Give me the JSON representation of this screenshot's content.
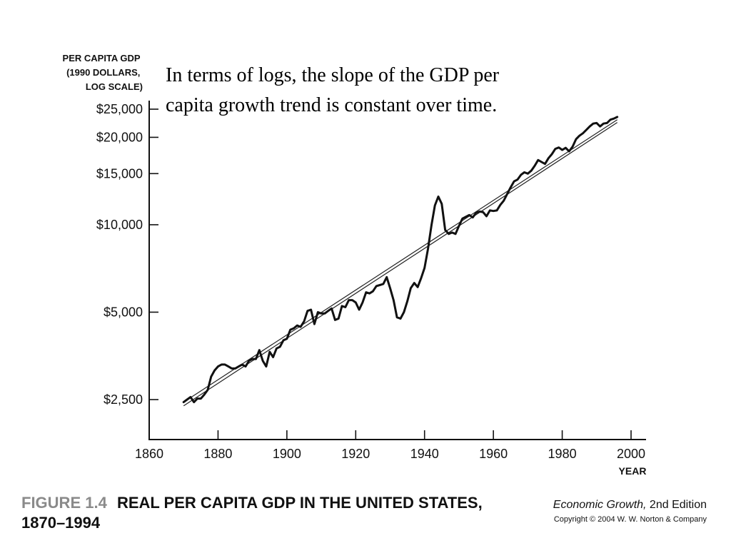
{
  "annotation": {
    "line1": "In terms of logs, the slope of the GDP per",
    "line2": "capita growth trend is constant over time."
  },
  "figure": {
    "number": "FIGURE 1.4",
    "title_line1": "REAL PER CAPITA GDP IN THE UNITED STATES,",
    "title_line2": "1870–1994",
    "book_title": "Economic Growth,",
    "book_edition": " 2nd Edition",
    "copyright": "Copyright © 2004 W. W. Norton & Company"
  },
  "colors": {
    "line": "#111111",
    "axis": "#111111",
    "trend": "#222222"
  },
  "chart_data": {
    "type": "line",
    "ylabel_lines": [
      "PER CAPITA GDP",
      "(1990 DOLLARS,",
      "LOG SCALE)"
    ],
    "xlabel": "YEAR",
    "yscale": "log",
    "xlim": [
      1860,
      2000
    ],
    "x_ticks": [
      1860,
      1880,
      1900,
      1920,
      1940,
      1960,
      1980,
      2000
    ],
    "x_tick_labels": [
      "1860",
      "1880",
      "1900",
      "1920",
      "1940",
      "1960",
      "1980",
      "2000"
    ],
    "y_ticks": [
      2500,
      5000,
      10000,
      15000,
      20000,
      25000
    ],
    "y_tick_labels": [
      "$2,500",
      "$5,000",
      "$10,000",
      "$15,000",
      "$20,000",
      "$25,000"
    ],
    "grid": false,
    "series": [
      {
        "x": [
          1870,
          1871,
          1872,
          1873,
          1874,
          1875,
          1876,
          1877,
          1878,
          1879,
          1880,
          1881,
          1882,
          1883,
          1884,
          1885,
          1886,
          1887,
          1888,
          1889,
          1890,
          1891,
          1892,
          1893,
          1894,
          1895,
          1896,
          1897,
          1898,
          1899,
          1900,
          1901,
          1902,
          1903,
          1904,
          1905,
          1906,
          1907,
          1908,
          1909,
          1910,
          1911,
          1912,
          1913,
          1914,
          1915,
          1916,
          1917,
          1918,
          1919,
          1920,
          1921,
          1922,
          1923,
          1924,
          1925,
          1926,
          1927,
          1928,
          1929,
          1930,
          1931,
          1932,
          1933,
          1934,
          1935,
          1936,
          1937,
          1938,
          1939,
          1940,
          1941,
          1942,
          1943,
          1944,
          1945,
          1946,
          1947,
          1948,
          1949,
          1950,
          1951,
          1952,
          1953,
          1954,
          1955,
          1956,
          1957,
          1958,
          1959,
          1960,
          1961,
          1962,
          1963,
          1964,
          1965,
          1966,
          1967,
          1968,
          1969,
          1970,
          1971,
          1972,
          1973,
          1974,
          1975,
          1976,
          1977,
          1978,
          1979,
          1980,
          1981,
          1982,
          1983,
          1984,
          1985,
          1986,
          1987,
          1988,
          1989,
          1990,
          1991,
          1992,
          1993,
          1994,
          1995,
          1996
        ],
        "values": [
          2450,
          2500,
          2550,
          2450,
          2520,
          2520,
          2600,
          2700,
          3000,
          3150,
          3250,
          3300,
          3300,
          3250,
          3200,
          3200,
          3250,
          3300,
          3250,
          3400,
          3450,
          3450,
          3700,
          3400,
          3250,
          3650,
          3500,
          3750,
          3800,
          4000,
          4050,
          4350,
          4400,
          4500,
          4450,
          4650,
          5050,
          5100,
          4550,
          5000,
          4950,
          4950,
          5050,
          5150,
          4700,
          4750,
          5250,
          5200,
          5500,
          5500,
          5400,
          5100,
          5400,
          5850,
          5800,
          5900,
          6150,
          6200,
          6250,
          6600,
          6050,
          5500,
          4800,
          4750,
          5000,
          5450,
          6050,
          6300,
          6100,
          6550,
          7100,
          8250,
          9950,
          11650,
          12500,
          11800,
          9600,
          9300,
          9400,
          9300,
          9900,
          10500,
          10650,
          10800,
          10600,
          11000,
          11100,
          11050,
          10700,
          11200,
          11150,
          11200,
          11700,
          12100,
          12750,
          13450,
          14100,
          14300,
          14850,
          15150,
          15000,
          15350,
          15950,
          16700,
          16450,
          16200,
          16950,
          17500,
          18250,
          18450,
          18100,
          18400,
          17900,
          18550,
          19700,
          20250,
          20650,
          21200,
          21800,
          22300,
          22400,
          21800,
          22300,
          22400,
          23000,
          23200,
          23500
        ]
      }
    ],
    "trend_lines": [
      {
        "x": [
          1870,
          1996
        ],
        "values": [
          2380,
          22500
        ]
      },
      {
        "x": [
          1870,
          1996
        ],
        "values": [
          2450,
          23000
        ]
      }
    ]
  }
}
